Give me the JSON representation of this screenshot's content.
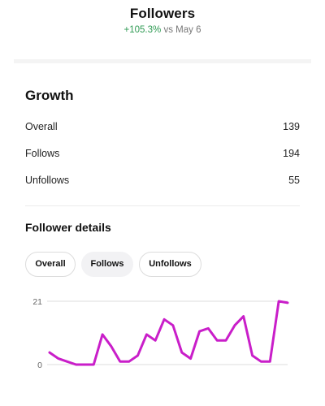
{
  "header": {
    "title": "Followers",
    "delta": "+105.3%",
    "comparison": "vs May 6"
  },
  "growth": {
    "title": "Growth",
    "rows": [
      {
        "label": "Overall",
        "value": "139"
      },
      {
        "label": "Follows",
        "value": "194"
      },
      {
        "label": "Unfollows",
        "value": "55"
      }
    ]
  },
  "details": {
    "title": "Follower details",
    "tabs": [
      {
        "label": "Overall",
        "active": false
      },
      {
        "label": "Follows",
        "active": true
      },
      {
        "label": "Unfollows",
        "active": false
      }
    ]
  },
  "colors": {
    "accent_positive": "#2e9a53",
    "series_line": "#c91ec9",
    "grid": "#dddddd"
  },
  "chart_data": {
    "type": "line",
    "series": [
      {
        "values": [
          4,
          2,
          1,
          0,
          0,
          0,
          10,
          6,
          1,
          1,
          3,
          10,
          8,
          15,
          13,
          4,
          2,
          11,
          12,
          8,
          8,
          13,
          16,
          3,
          1,
          1,
          21,
          20.5
        ]
      }
    ],
    "yticks": [
      "21",
      "0"
    ],
    "ylim": [
      0,
      21
    ],
    "grid": true,
    "legend": "none"
  }
}
